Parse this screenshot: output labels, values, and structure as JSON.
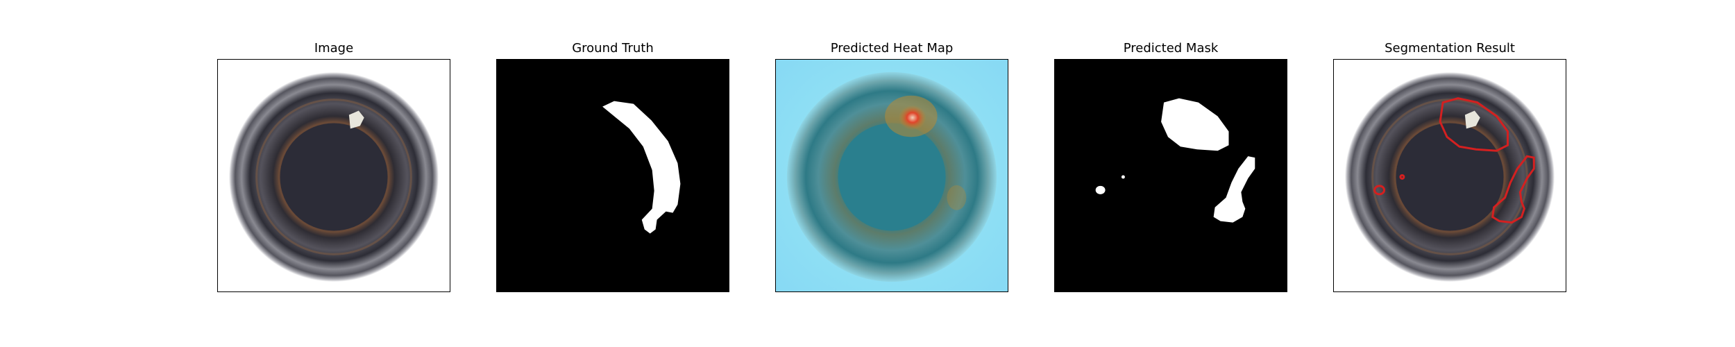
{
  "panels": [
    {
      "title": "Image"
    },
    {
      "title": "Ground Truth"
    },
    {
      "title": "Predicted Heat Map"
    },
    {
      "title": "Predicted Mask"
    },
    {
      "title": "Segmentation Result"
    }
  ],
  "colors": {
    "background": "#ffffff",
    "mask_background": "#000000",
    "mask_foreground": "#ffffff",
    "contour": "#d42020",
    "heatmap_low": "#8fe3f7",
    "heatmap_high": "#e0442a"
  }
}
